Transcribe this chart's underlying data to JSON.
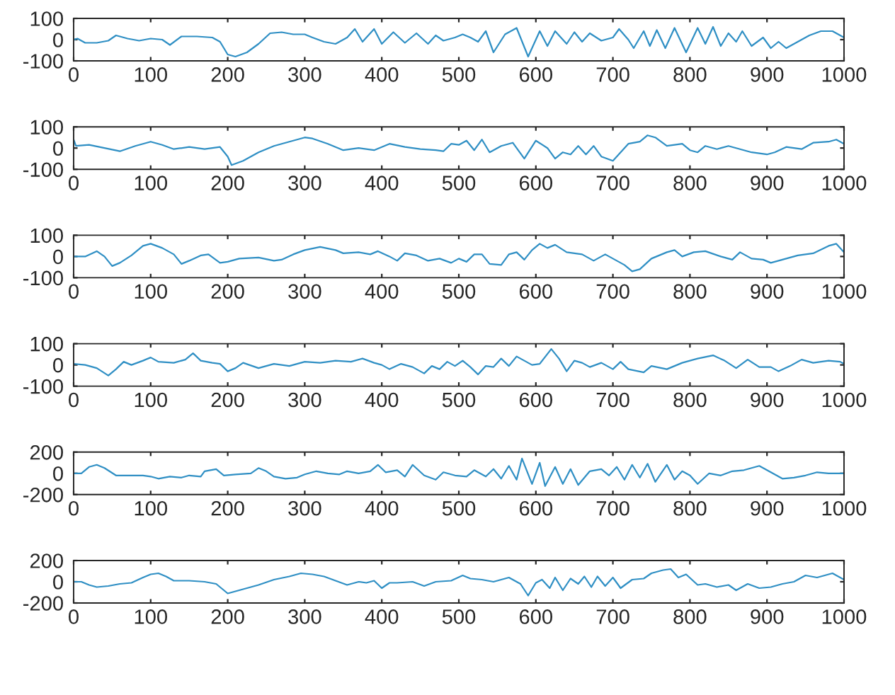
{
  "chart_data": [
    {
      "type": "line",
      "xlim": [
        0,
        1000
      ],
      "xticks": [
        0,
        100,
        200,
        300,
        400,
        500,
        600,
        700,
        800,
        900,
        1000
      ],
      "ylim": [
        -100,
        100
      ],
      "yticks": [
        -100,
        0,
        100
      ],
      "legend": false,
      "series": [
        {
          "color": "#2f8fc4",
          "x": [
            0,
            5,
            15,
            30,
            45,
            55,
            70,
            85,
            100,
            115,
            125,
            140,
            160,
            180,
            190,
            200,
            210,
            225,
            240,
            255,
            270,
            285,
            300,
            310,
            325,
            340,
            355,
            365,
            375,
            390,
            400,
            415,
            430,
            445,
            460,
            470,
            480,
            495,
            505,
            515,
            525,
            535,
            545,
            560,
            575,
            590,
            605,
            615,
            625,
            640,
            650,
            660,
            670,
            685,
            700,
            708,
            720,
            727,
            740,
            748,
            757,
            768,
            780,
            795,
            810,
            820,
            830,
            840,
            850,
            860,
            868,
            880,
            895,
            905,
            915,
            925,
            940,
            955,
            970,
            985,
            995,
            1000
          ],
          "values": [
            0,
            5,
            -15,
            -15,
            -5,
            20,
            5,
            -5,
            5,
            0,
            -25,
            15,
            15,
            10,
            -10,
            -70,
            -80,
            -60,
            -20,
            30,
            35,
            25,
            25,
            10,
            -10,
            -20,
            10,
            50,
            -10,
            50,
            -20,
            35,
            -15,
            30,
            -20,
            20,
            -5,
            10,
            25,
            10,
            -10,
            40,
            -60,
            25,
            55,
            -80,
            40,
            -30,
            40,
            -20,
            35,
            -10,
            30,
            -5,
            10,
            50,
            0,
            -40,
            40,
            -30,
            45,
            -40,
            55,
            -60,
            55,
            -20,
            60,
            -30,
            30,
            -10,
            40,
            -30,
            10,
            -40,
            -10,
            -40,
            -10,
            20,
            40,
            40,
            20,
            10
          ]
        }
      ]
    },
    {
      "type": "line",
      "xlim": [
        0,
        1000
      ],
      "xticks": [
        0,
        100,
        200,
        300,
        400,
        500,
        600,
        700,
        800,
        900,
        1000
      ],
      "ylim": [
        -100,
        100
      ],
      "yticks": [
        -100,
        0,
        100
      ],
      "legend": false,
      "series": [
        {
          "color": "#2f8fc4",
          "x": [
            0,
            3,
            20,
            40,
            60,
            80,
            100,
            115,
            130,
            150,
            170,
            190,
            200,
            205,
            220,
            240,
            260,
            280,
            300,
            310,
            330,
            350,
            370,
            390,
            410,
            430,
            450,
            470,
            480,
            490,
            500,
            510,
            520,
            530,
            540,
            555,
            570,
            585,
            600,
            615,
            625,
            635,
            645,
            655,
            665,
            675,
            685,
            700,
            710,
            720,
            735,
            745,
            755,
            770,
            790,
            800,
            810,
            820,
            835,
            850,
            870,
            880,
            900,
            910,
            925,
            945,
            960,
            980,
            990,
            1000
          ],
          "values": [
            40,
            10,
            15,
            0,
            -15,
            10,
            30,
            15,
            -5,
            5,
            -5,
            5,
            -40,
            -80,
            -60,
            -20,
            10,
            30,
            50,
            45,
            20,
            -10,
            0,
            -10,
            20,
            5,
            -5,
            -10,
            -15,
            20,
            15,
            35,
            -10,
            40,
            -20,
            10,
            25,
            -50,
            35,
            0,
            -50,
            -20,
            -30,
            10,
            -30,
            10,
            -40,
            -60,
            -20,
            20,
            30,
            60,
            50,
            10,
            20,
            -10,
            -20,
            10,
            -5,
            10,
            -10,
            -20,
            -30,
            -20,
            5,
            -5,
            25,
            30,
            40,
            20
          ]
        }
      ]
    },
    {
      "type": "line",
      "xlim": [
        0,
        1000
      ],
      "xticks": [
        0,
        100,
        200,
        300,
        400,
        500,
        600,
        700,
        800,
        900,
        1000
      ],
      "ylim": [
        -100,
        100
      ],
      "yticks": [
        -100,
        0,
        100
      ],
      "legend": false,
      "series": [
        {
          "color": "#2f8fc4",
          "x": [
            0,
            15,
            30,
            40,
            50,
            60,
            75,
            90,
            100,
            115,
            130,
            140,
            150,
            165,
            175,
            190,
            200,
            215,
            240,
            260,
            270,
            285,
            300,
            320,
            340,
            350,
            370,
            385,
            395,
            410,
            420,
            430,
            445,
            460,
            475,
            490,
            500,
            510,
            520,
            530,
            540,
            555,
            565,
            575,
            585,
            595,
            605,
            615,
            625,
            640,
            660,
            675,
            690,
            700,
            715,
            725,
            735,
            750,
            770,
            780,
            790,
            805,
            820,
            840,
            855,
            865,
            880,
            895,
            905,
            920,
            940,
            960,
            980,
            990,
            1000
          ],
          "values": [
            0,
            0,
            25,
            0,
            -45,
            -30,
            5,
            50,
            60,
            40,
            10,
            -35,
            -20,
            5,
            10,
            -30,
            -25,
            -10,
            -5,
            -20,
            -15,
            10,
            30,
            45,
            30,
            15,
            20,
            10,
            25,
            0,
            -20,
            15,
            5,
            -20,
            -10,
            -30,
            -10,
            -25,
            10,
            10,
            -35,
            -40,
            10,
            20,
            -15,
            30,
            60,
            40,
            55,
            20,
            10,
            -20,
            10,
            -10,
            -40,
            -70,
            -60,
            -10,
            20,
            30,
            0,
            20,
            25,
            0,
            -15,
            20,
            -10,
            -15,
            -30,
            -15,
            5,
            15,
            50,
            60,
            20
          ]
        }
      ]
    },
    {
      "type": "line",
      "xlim": [
        0,
        1000
      ],
      "xticks": [
        0,
        100,
        200,
        300,
        400,
        500,
        600,
        700,
        800,
        900,
        1000
      ],
      "ylim": [
        -100,
        100
      ],
      "yticks": [
        -100,
        0,
        100
      ],
      "legend": false,
      "series": [
        {
          "color": "#2f8fc4",
          "x": [
            0,
            15,
            30,
            45,
            55,
            65,
            75,
            90,
            100,
            110,
            130,
            145,
            155,
            165,
            180,
            190,
            200,
            210,
            220,
            240,
            260,
            280,
            300,
            320,
            340,
            360,
            375,
            390,
            400,
            410,
            425,
            440,
            455,
            465,
            475,
            485,
            495,
            505,
            515,
            525,
            535,
            545,
            555,
            565,
            575,
            585,
            595,
            605,
            620,
            630,
            640,
            650,
            660,
            670,
            685,
            700,
            710,
            720,
            740,
            750,
            770,
            790,
            810,
            830,
            845,
            860,
            875,
            890,
            905,
            915,
            930,
            945,
            960,
            980,
            995,
            1000
          ],
          "values": [
            5,
            0,
            -15,
            -50,
            -20,
            15,
            0,
            20,
            35,
            15,
            10,
            25,
            55,
            20,
            10,
            5,
            -30,
            -15,
            10,
            -15,
            5,
            -5,
            15,
            10,
            20,
            15,
            30,
            10,
            0,
            -20,
            5,
            -10,
            -40,
            -5,
            -20,
            15,
            -5,
            20,
            -10,
            -45,
            -5,
            -10,
            30,
            -5,
            40,
            20,
            0,
            5,
            75,
            30,
            -30,
            20,
            10,
            -10,
            10,
            -20,
            15,
            -20,
            -35,
            -5,
            -20,
            10,
            30,
            45,
            20,
            -15,
            25,
            -10,
            -10,
            -30,
            -5,
            25,
            10,
            20,
            15,
            5
          ]
        }
      ]
    },
    {
      "type": "line",
      "xlim": [
        0,
        1000
      ],
      "xticks": [
        0,
        100,
        200,
        300,
        400,
        500,
        600,
        700,
        800,
        900,
        1000
      ],
      "ylim": [
        -200,
        200
      ],
      "yticks": [
        -200,
        0,
        200
      ],
      "legend": false,
      "series": [
        {
          "color": "#2f8fc4",
          "x": [
            0,
            10,
            20,
            30,
            40,
            55,
            70,
            90,
            100,
            110,
            125,
            140,
            150,
            165,
            170,
            185,
            195,
            210,
            230,
            240,
            250,
            260,
            275,
            290,
            300,
            315,
            330,
            345,
            355,
            370,
            385,
            395,
            405,
            420,
            430,
            440,
            455,
            470,
            480,
            495,
            510,
            520,
            535,
            545,
            555,
            565,
            575,
            582,
            595,
            605,
            612,
            625,
            635,
            645,
            655,
            670,
            685,
            695,
            705,
            715,
            725,
            735,
            745,
            755,
            770,
            780,
            790,
            800,
            810,
            825,
            840,
            855,
            870,
            890,
            905,
            920,
            935,
            950,
            965,
            980,
            1000
          ],
          "values": [
            0,
            0,
            60,
            80,
            50,
            -20,
            -20,
            -20,
            -30,
            -50,
            -30,
            -40,
            -20,
            -30,
            20,
            40,
            -20,
            -10,
            0,
            50,
            20,
            -30,
            -50,
            -40,
            -10,
            20,
            0,
            -10,
            20,
            0,
            20,
            80,
            10,
            30,
            -30,
            80,
            -20,
            -60,
            10,
            -20,
            -30,
            30,
            -30,
            40,
            -50,
            70,
            -60,
            140,
            -100,
            100,
            -120,
            60,
            -100,
            40,
            -110,
            20,
            40,
            -20,
            60,
            -60,
            80,
            -40,
            90,
            -80,
            80,
            -60,
            20,
            -20,
            -100,
            0,
            -20,
            20,
            30,
            70,
            10,
            -50,
            -40,
            -20,
            10,
            0,
            0
          ]
        }
      ]
    },
    {
      "type": "line",
      "xlim": [
        0,
        1000
      ],
      "xticks": [
        0,
        100,
        200,
        300,
        400,
        500,
        600,
        700,
        800,
        900,
        1000
      ],
      "ylim": [
        -200,
        200
      ],
      "yticks": [
        -200,
        0,
        200
      ],
      "legend": false,
      "series": [
        {
          "color": "#2f8fc4",
          "x": [
            0,
            10,
            20,
            30,
            45,
            60,
            75,
            90,
            100,
            110,
            120,
            130,
            150,
            170,
            185,
            195,
            200,
            215,
            240,
            260,
            280,
            295,
            310,
            325,
            340,
            355,
            370,
            380,
            390,
            400,
            410,
            420,
            440,
            455,
            470,
            490,
            505,
            515,
            530,
            545,
            555,
            565,
            580,
            590,
            600,
            608,
            618,
            625,
            635,
            645,
            655,
            663,
            672,
            680,
            690,
            700,
            710,
            725,
            740,
            750,
            765,
            775,
            785,
            795,
            810,
            820,
            835,
            850,
            860,
            875,
            890,
            905,
            920,
            935,
            950,
            965,
            985,
            1000
          ],
          "values": [
            0,
            0,
            -30,
            -50,
            -40,
            -20,
            -10,
            40,
            70,
            80,
            50,
            10,
            10,
            0,
            -20,
            -80,
            -110,
            -80,
            -30,
            20,
            50,
            80,
            70,
            50,
            10,
            -30,
            0,
            -10,
            10,
            -60,
            -10,
            -10,
            0,
            -40,
            0,
            10,
            60,
            30,
            20,
            0,
            20,
            40,
            -20,
            -130,
            -10,
            20,
            -60,
            40,
            -80,
            30,
            -20,
            50,
            -50,
            50,
            -40,
            40,
            -60,
            20,
            30,
            80,
            110,
            120,
            40,
            70,
            -30,
            -20,
            -50,
            -30,
            -80,
            -20,
            -60,
            -50,
            -20,
            0,
            60,
            40,
            80,
            20
          ]
        }
      ]
    }
  ]
}
